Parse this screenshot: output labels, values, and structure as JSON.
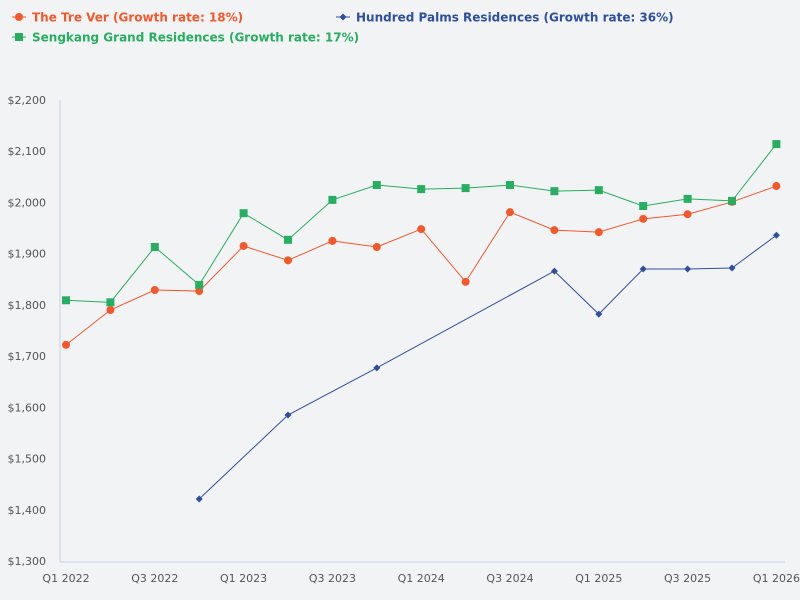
{
  "chart_data": {
    "type": "line",
    "title": "",
    "xlabel": "",
    "ylabel": "",
    "ylim": [
      1300,
      2200
    ],
    "grid": false,
    "legend_position": "top",
    "x": [
      "Q1 2022",
      "Q2 2022",
      "Q3 2022",
      "Q4 2022",
      "Q1 2023",
      "Q2 2023",
      "Q3 2023",
      "Q4 2023",
      "Q1 2024",
      "Q2 2024",
      "Q3 2024",
      "Q4 2024",
      "Q1 2025",
      "Q2 2025",
      "Q3 2025",
      "Q4 2025",
      "Q1 2026"
    ],
    "x_tick_labels": [
      "Q1 2022",
      "Q3 2022",
      "Q1 2023",
      "Q3 2023",
      "Q1 2024",
      "Q3 2024",
      "Q1 2025",
      "Q3 2025",
      "Q1 2026"
    ],
    "y_tick_labels": [
      "$1,300",
      "$1,400",
      "$1,500",
      "$1,600",
      "$1,700",
      "$1,800",
      "$1,900",
      "$2,000",
      "$2,100",
      "$2,200"
    ],
    "y_ticks": [
      1300,
      1400,
      1500,
      1600,
      1700,
      1800,
      1900,
      2000,
      2100,
      2200
    ],
    "series": [
      {
        "name": "The Tre Ver (Growth rate: 18%)",
        "color": "#f4582a",
        "marker": "circle",
        "values": [
          1722,
          1790,
          1829,
          1827,
          1915,
          1887,
          1925,
          1913,
          1948,
          1845,
          1981,
          1946,
          1942,
          1968,
          1977,
          2001,
          2032
        ]
      },
      {
        "name": "Hundred Palms Residences (Growth rate: 36%)",
        "color": "#2e4fa0",
        "marker": "diamond",
        "values": [
          null,
          null,
          null,
          1421,
          null,
          1585,
          null,
          1677,
          null,
          null,
          null,
          1866,
          1782,
          1870,
          1870,
          1872,
          1936
        ]
      },
      {
        "name": "Sengkang Grand Residences (Growth rate: 17%)",
        "color": "#27ae60",
        "marker": "square",
        "values": [
          1809,
          1805,
          1913,
          1839,
          1979,
          1927,
          2005,
          2034,
          2026,
          2028,
          2034,
          2022,
          2024,
          1993,
          2007,
          2003,
          2114
        ]
      }
    ]
  }
}
